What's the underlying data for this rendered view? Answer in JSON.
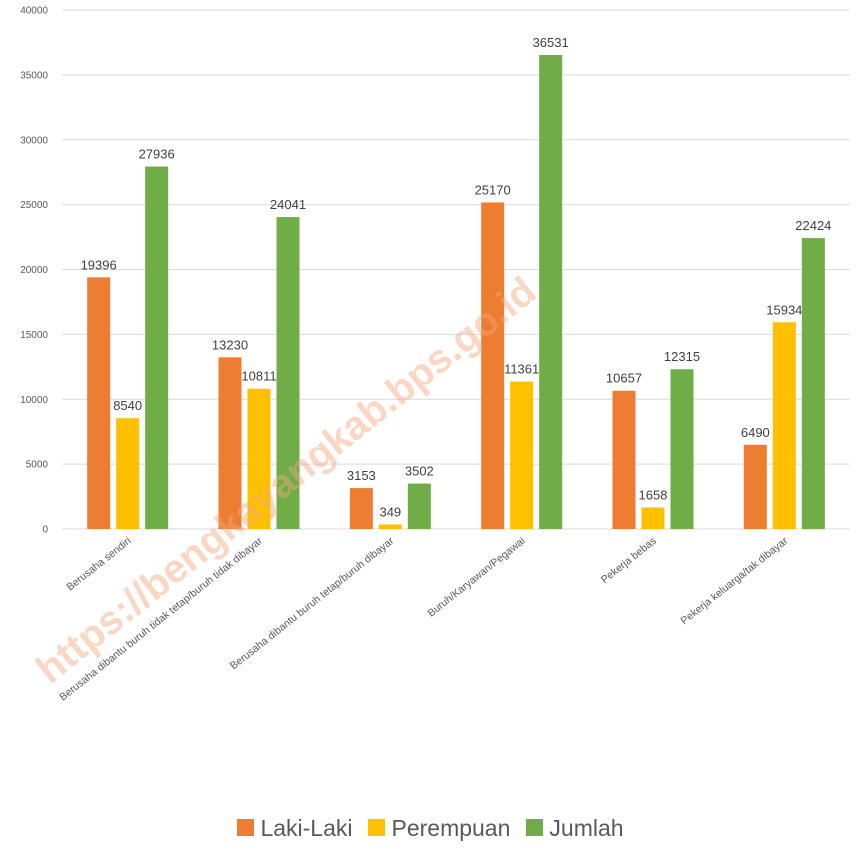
{
  "chart_data": {
    "type": "bar",
    "categories": [
      "Berusaha sendiri",
      "Berusaha dibantu buruh tidak tetap/buruh tidak dibayar",
      "Berusaha dibantu buruh tetap/buruh dibayar",
      "Buruh/Karyawan/Pegawai",
      "Pekerja bebas",
      "Pekerja keluarga/tak dibayar"
    ],
    "series": [
      {
        "name": "Laki-Laki",
        "color": "#ed7d31",
        "values": [
          19396,
          13230,
          3153,
          25170,
          10657,
          6490
        ]
      },
      {
        "name": "Perempuan",
        "color": "#ffc000",
        "values": [
          8540,
          10811,
          349,
          11361,
          1658,
          15934
        ]
      },
      {
        "name": "Jumlah",
        "color": "#70ad47",
        "values": [
          27936,
          24041,
          3502,
          36531,
          12315,
          22424
        ]
      }
    ],
    "ylim": [
      0,
      40000
    ],
    "yticks": [
      0,
      5000,
      10000,
      15000,
      20000,
      25000,
      30000,
      35000,
      40000
    ],
    "grid": true,
    "legend_position": "bottom",
    "watermark": "https://bengkayangkab.bps.go.id"
  }
}
